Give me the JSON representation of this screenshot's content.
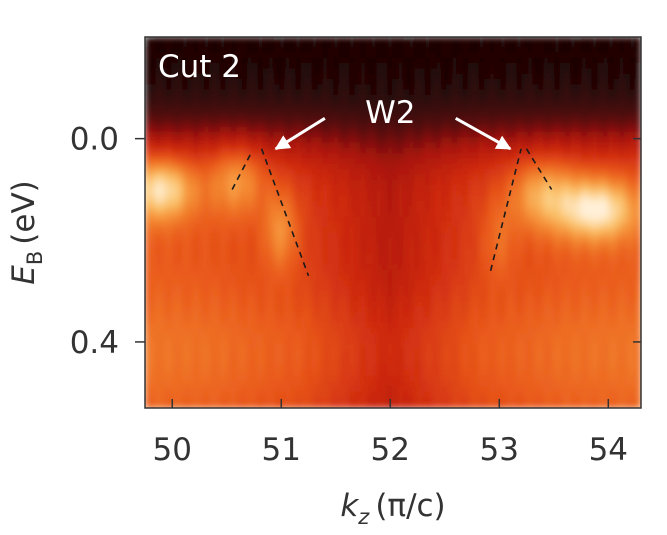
{
  "chart_data": {
    "type": "heatmap",
    "panel_label": "Cut 2",
    "xlabel": {
      "symbol": "k",
      "subscript": "z",
      "unit": "(π/c)"
    },
    "ylabel": {
      "symbol": "E",
      "subscript": "B",
      "unit": "(eV)"
    },
    "xlim": [
      49.75,
      54.3
    ],
    "ylim": [
      -0.2,
      0.53
    ],
    "y_inverted": true,
    "x_ticks": [
      50,
      51,
      52,
      53,
      54
    ],
    "y_ticks": [
      0.0,
      0.4
    ],
    "x_tick_labels": [
      "50",
      "51",
      "52",
      "53",
      "54"
    ],
    "y_tick_labels": [
      "0.0",
      "0.4"
    ],
    "colormap": [
      "#1e0606",
      "#5a0c0c",
      "#a8140e",
      "#cf2a10",
      "#e8561a",
      "#f48a32",
      "#fbc26a",
      "#fff0d8"
    ],
    "intensity_model": {
      "background": [
        {
          "k": 49.75,
          "value": 0.58
        },
        {
          "k": 50.4,
          "value": 0.56
        },
        {
          "k": 51.2,
          "value": 0.5
        },
        {
          "k": 51.7,
          "value": 0.4
        },
        {
          "k": 52.0,
          "value": 0.34
        },
        {
          "k": 52.3,
          "value": 0.4
        },
        {
          "k": 52.8,
          "value": 0.5
        },
        {
          "k": 53.6,
          "value": 0.56
        },
        {
          "k": 54.3,
          "value": 0.58
        }
      ],
      "bright_spots": [
        {
          "k": 49.9,
          "E": 0.1,
          "sigma_k": 0.3,
          "sigma_E": 0.06,
          "amp": 0.42
        },
        {
          "k": 50.6,
          "E": 0.08,
          "sigma_k": 0.25,
          "sigma_E": 0.07,
          "amp": 0.25
        },
        {
          "k": 51.0,
          "E": 0.18,
          "sigma_k": 0.15,
          "sigma_E": 0.08,
          "amp": 0.22
        },
        {
          "k": 53.9,
          "E": 0.14,
          "sigma_k": 0.35,
          "sigma_E": 0.06,
          "amp": 0.45
        },
        {
          "k": 53.4,
          "E": 0.11,
          "sigma_k": 0.3,
          "sigma_E": 0.07,
          "amp": 0.28
        },
        {
          "k": 53.0,
          "E": 0.2,
          "sigma_k": 0.15,
          "sigma_E": 0.08,
          "amp": 0.12
        }
      ]
    },
    "dashed_bands": [
      {
        "name": "left-inner",
        "points": [
          [
            50.55,
            0.1
          ],
          [
            50.72,
            0.03
          ]
        ]
      },
      {
        "name": "left-outer",
        "points": [
          [
            50.82,
            0.02
          ],
          [
            51.25,
            0.27
          ]
        ]
      },
      {
        "name": "right-inner",
        "points": [
          [
            52.92,
            0.26
          ],
          [
            53.2,
            0.02
          ]
        ]
      },
      {
        "name": "right-outer",
        "points": [
          [
            53.25,
            0.02
          ],
          [
            53.48,
            0.1
          ]
        ]
      }
    ],
    "annotations": [
      {
        "text": "W2",
        "position": [
          52.0,
          -0.05
        ],
        "arrows": [
          {
            "from": [
              51.4,
              -0.04
            ],
            "to": [
              50.95,
              0.02
            ]
          },
          {
            "from": [
              52.6,
              -0.04
            ],
            "to": [
              53.1,
              0.02
            ]
          }
        ]
      }
    ]
  }
}
